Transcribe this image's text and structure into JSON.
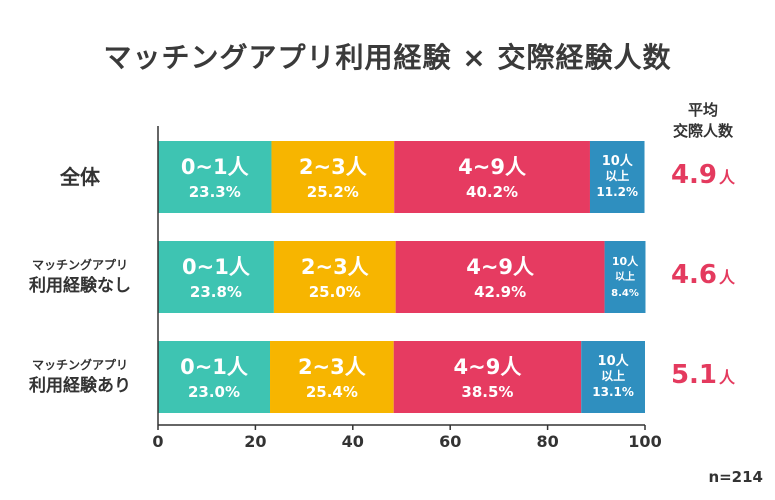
{
  "title": "マッチングアプリ利用経験 × 交際経験人数",
  "avg_header": [
    "平均",
    "交際人数"
  ],
  "note": "n=214",
  "chart_data": {
    "type": "bar",
    "orientation": "horizontal",
    "stacked": true,
    "title": "マッチングアプリ利用経験 × 交際経験人数",
    "xlim": [
      0,
      100
    ],
    "xticks": [
      0,
      20,
      40,
      60,
      80,
      100
    ],
    "categories": [
      [
        "全体"
      ],
      [
        "マッチングアプリ",
        "利用経験なし"
      ],
      [
        "マッチングアプリ",
        "利用経験あり"
      ]
    ],
    "series": [
      {
        "name": "0~1人",
        "label_lines": [
          "0~1人"
        ],
        "color": "#3ec4b2",
        "values": [
          23.3,
          23.8,
          23.0
        ],
        "labels": [
          "23.3%",
          "23.8%",
          "23.0%"
        ]
      },
      {
        "name": "2~3人",
        "label_lines": [
          "2~3人"
        ],
        "color": "#f7b500",
        "values": [
          25.2,
          25.0,
          25.4
        ],
        "labels": [
          "25.2%",
          "25.0%",
          "25.4%"
        ]
      },
      {
        "name": "4~9人",
        "label_lines": [
          "4~9人"
        ],
        "color": "#e63b61",
        "values": [
          40.2,
          42.9,
          38.5
        ],
        "labels": [
          "40.2%",
          "42.9%",
          "38.5%"
        ]
      },
      {
        "name": "10人以上",
        "label_lines": [
          "10人",
          "以上"
        ],
        "color": "#2f8fbf",
        "values": [
          11.2,
          8.4,
          13.1
        ],
        "labels": [
          "11.2%",
          "8.4%",
          "13.1%"
        ]
      }
    ],
    "averages": [
      {
        "value": "4.9",
        "unit": "人"
      },
      {
        "value": "4.6",
        "unit": "人"
      },
      {
        "value": "5.1",
        "unit": "人"
      }
    ]
  }
}
